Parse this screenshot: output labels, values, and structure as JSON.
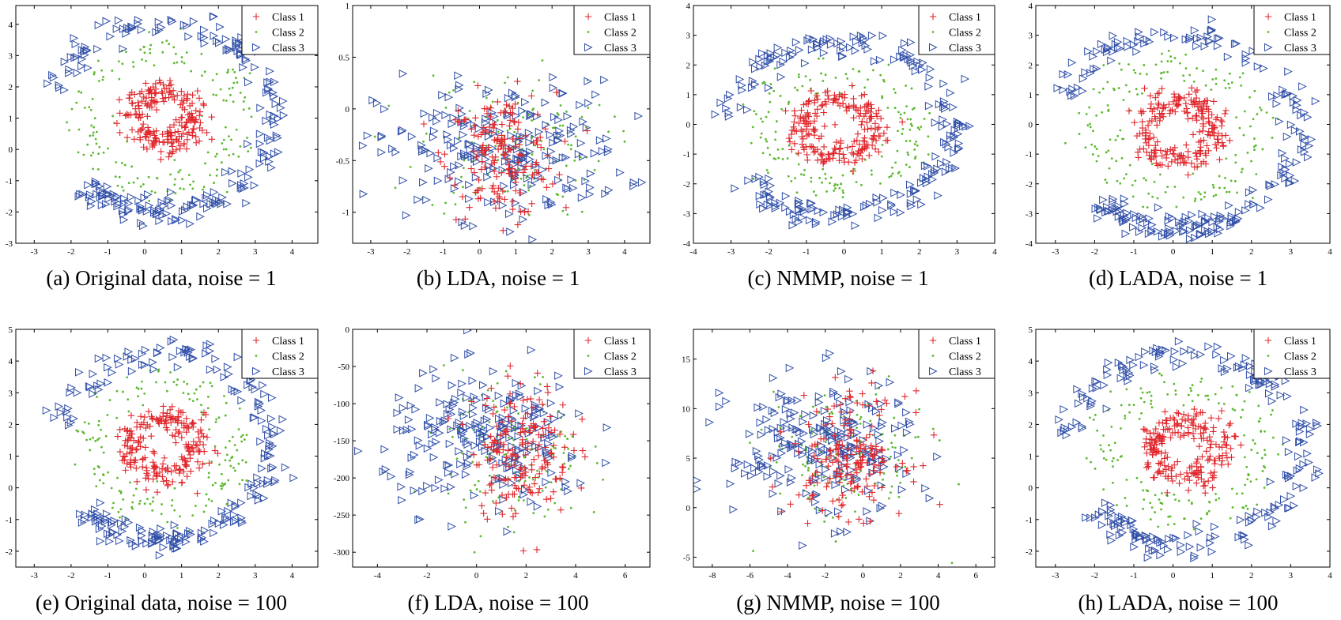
{
  "colors": {
    "class1": "#e0262b",
    "class2": "#5cb82e",
    "class3": "#2f4ea8"
  },
  "legend_labels": [
    "Class 1",
    "Class 2",
    "Class 3"
  ],
  "chart_data": [
    {
      "type": "scatter",
      "id": "a",
      "caption": "(a) Original data, noise = 1",
      "xlim": [
        -3.5,
        4.7
      ],
      "ylim": [
        -3,
        4.6
      ],
      "xticks": [
        -3,
        -2,
        -1,
        0,
        1,
        2,
        3,
        4
      ],
      "yticks": [
        -3,
        -2,
        -1,
        0,
        1,
        2,
        3,
        4
      ],
      "gen": "rings",
      "params": {
        "cx": 0.5,
        "cy": 1,
        "sx": 1,
        "sy": 1,
        "r1": 0.85,
        "r2": 2.1,
        "r3": 3.0,
        "w1": 0.22,
        "w2": 0.12,
        "w3": 0.22,
        "gap": 0.55
      }
    },
    {
      "type": "scatter",
      "id": "b",
      "caption": "(b) LDA, noise = 1",
      "xlim": [
        -3.5,
        4.7
      ],
      "ylim": [
        -1.3,
        1
      ],
      "xticks": [
        -3,
        -2,
        -1,
        0,
        1,
        2,
        3,
        4
      ],
      "yticks": [
        -1,
        -0.5,
        0,
        0.5,
        1
      ],
      "gen": "blobs",
      "params": {
        "c1": [
          0.6,
          -0.45,
          0.75,
          0.3
        ],
        "c2": [
          0.9,
          -0.35,
          1.3,
          0.35
        ],
        "c3": [
          0.6,
          -0.4,
          1.7,
          0.33
        ],
        "wide3": true
      }
    },
    {
      "type": "scatter",
      "id": "c",
      "caption": "(c) NMMP, noise = 1",
      "xlim": [
        -4,
        4
      ],
      "ylim": [
        -4,
        4
      ],
      "xticks": [
        -4,
        -3,
        -2,
        -1,
        0,
        1,
        2,
        3,
        4
      ],
      "yticks": [
        -4,
        -3,
        -2,
        -1,
        0,
        1,
        2,
        3,
        4
      ],
      "gen": "rings",
      "params": {
        "cx": -0.15,
        "cy": -0.15,
        "sx": 1.0,
        "sy": 0.95,
        "r1": 1.0,
        "r2": 2.05,
        "r3": 3.05,
        "w1": 0.22,
        "w2": 0.12,
        "w3": 0.22,
        "gap": 0.4
      }
    },
    {
      "type": "scatter",
      "id": "d",
      "caption": "(d) LADA, noise = 1",
      "xlim": [
        -3.5,
        4
      ],
      "ylim": [
        -4,
        4
      ],
      "xticks": [
        -3,
        -2,
        -1,
        0,
        1,
        2,
        3,
        4
      ],
      "yticks": [
        -4,
        -3,
        -2,
        -1,
        0,
        1,
        2,
        3,
        4
      ],
      "gen": "rings",
      "params": {
        "cx": 0.1,
        "cy": -0.2,
        "sx": 1.0,
        "sy": 1.05,
        "r1": 0.95,
        "r2": 2.05,
        "r3": 3.1,
        "w1": 0.22,
        "w2": 0.12,
        "w3": 0.22,
        "gap": 0.6
      }
    },
    {
      "type": "scatter",
      "id": "e",
      "caption": "(e) Original data, noise = 100",
      "xlim": [
        -3.5,
        4.7
      ],
      "ylim": [
        -2.5,
        5
      ],
      "xticks": [
        -3,
        -2,
        -1,
        0,
        1,
        2,
        3,
        4
      ],
      "yticks": [
        -2,
        -1,
        0,
        1,
        2,
        3,
        4,
        5
      ],
      "gen": "rings",
      "params": {
        "cx": 0.5,
        "cy": 1.3,
        "sx": 1.0,
        "sy": 1.0,
        "r1": 0.9,
        "r2": 2.0,
        "r3": 2.95,
        "w1": 0.22,
        "w2": 0.12,
        "w3": 0.22,
        "gap": 0.5
      }
    },
    {
      "type": "scatter",
      "id": "f",
      "caption": "(f) LDA, noise = 100",
      "xlim": [
        -5,
        7
      ],
      "ylim": [
        -320,
        0
      ],
      "xticks": [
        -4,
        -2,
        0,
        2,
        4,
        6
      ],
      "yticks": [
        -300,
        -250,
        -200,
        -150,
        -100,
        -50,
        0
      ],
      "gen": "blobs",
      "params": {
        "c1": [
          1.8,
          -160,
          1.0,
          45
        ],
        "c2": [
          1.5,
          -170,
          1.4,
          55
        ],
        "c3": [
          0.5,
          -150,
          2.1,
          45
        ],
        "wide3": false
      }
    },
    {
      "type": "scatter",
      "id": "g",
      "caption": "(g) NMMP, noise = 100",
      "xlim": [
        -9,
        7
      ],
      "ylim": [
        -6,
        18
      ],
      "xticks": [
        -8,
        -6,
        -4,
        -2,
        0,
        2,
        4,
        6
      ],
      "yticks": [
        -5,
        0,
        5,
        10,
        15
      ],
      "gen": "blobs",
      "params": {
        "c1": [
          -0.7,
          5.5,
          1.5,
          3.0
        ],
        "c2": [
          -0.9,
          5.0,
          2.2,
          3.5
        ],
        "c3": [
          -2.2,
          6.0,
          2.4,
          3.5
        ],
        "wide3": false
      }
    },
    {
      "type": "scatter",
      "id": "h",
      "caption": "(h) LADA, noise = 100",
      "xlim": [
        -3.5,
        4
      ],
      "ylim": [
        -2.5,
        5
      ],
      "xticks": [
        -3,
        -2,
        -1,
        0,
        1,
        2,
        3,
        4
      ],
      "yticks": [
        -2,
        -1,
        0,
        1,
        2,
        3,
        4,
        5
      ],
      "gen": "rings",
      "params": {
        "cx": 0.35,
        "cy": 1.2,
        "sx": 1.0,
        "sy": 1.0,
        "r1": 0.9,
        "r2": 2.0,
        "r3": 3.0,
        "w1": 0.22,
        "w2": 0.12,
        "w3": 0.22,
        "gap": 0.4
      }
    }
  ]
}
